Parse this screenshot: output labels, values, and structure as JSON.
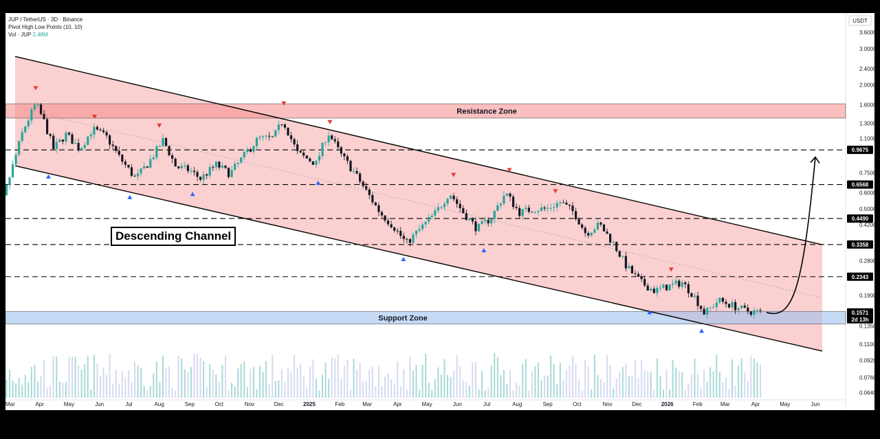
{
  "header": {
    "line1": "JUP / TetherUS · 3D · Binance",
    "line2": "Pivot High Low Points (10, 10)",
    "line3_label": "Vol · JUP",
    "line3_value": "2.48M"
  },
  "currency": "USDT",
  "annotation_title": "Descending Channel",
  "colors": {
    "up": "#26a69a",
    "down": "#131722",
    "channel_fill": "#f7b9b9",
    "resistance": "#f58a8a",
    "support": "#9fc2ee",
    "pivot_high": "#e53935",
    "pivot_low": "#2962ff"
  },
  "chart_data": {
    "type": "candlestick",
    "title": "",
    "scale": "log",
    "ylim": [
      0.0605,
      4.3
    ],
    "y_ticks": [
      "3.6000",
      "3.0000",
      "2.4000",
      "2.0000",
      "1.6000",
      "1.3000",
      "1.1000",
      "0.7500",
      "0.6000",
      "0.5000",
      "0.4200",
      "0.2800",
      "0.1900",
      "0.1350",
      "0.1100",
      "0.0920",
      "0.0760",
      "0.0640"
    ],
    "x_ticks": [
      "Mar",
      "Apr",
      "May",
      "Jun",
      "Jul",
      "Aug",
      "Sep",
      "Oct",
      "Nov",
      "Dec",
      "2025",
      "Feb",
      "Mar",
      "Apr",
      "May",
      "Jun",
      "Jul",
      "Aug",
      "Sep",
      "Oct",
      "Nov",
      "Dec",
      "2026",
      "Feb",
      "Mar",
      "Apr",
      "May",
      "Jun"
    ],
    "x_ticks_bold": [
      "2025",
      "2026"
    ],
    "price_levels": [
      0.9675,
      0.6568,
      0.449,
      0.3358,
      0.2343
    ],
    "price_labels": [
      "0.9675",
      "0.6568",
      "0.4490",
      "0.3358",
      "0.2343"
    ],
    "last_price": 0.1571,
    "last_price_label": "0.1571",
    "countdown": "2d 13h",
    "zones": [
      {
        "label": "Resistance Zone",
        "low": 1.38,
        "high": 1.62
      },
      {
        "label": "Support Zone",
        "low": 0.138,
        "high": 0.159
      }
    ],
    "channel": {
      "upper_start": {
        "date": "2024-03-07",
        "value": 2.75
      },
      "upper_end": {
        "date": "2026-06-08",
        "value": 0.335
      },
      "lower_start": {
        "date": "2024-03-07",
        "value": 0.81
      },
      "lower_end": {
        "date": "2026-06-08",
        "value": 0.102
      }
    },
    "projection_target": 0.95,
    "price_path": [
      [
        "2024-02-01",
        0.46
      ],
      [
        "2024-02-22",
        0.52
      ],
      [
        "2024-03-05",
        0.82
      ],
      [
        "2024-03-15",
        1.2
      ],
      [
        "2024-03-28",
        1.62
      ],
      [
        "2024-04-05",
        1.35
      ],
      [
        "2024-04-15",
        0.98
      ],
      [
        "2024-04-28",
        1.15
      ],
      [
        "2024-05-12",
        0.98
      ],
      [
        "2024-05-25",
        1.22
      ],
      [
        "2024-06-08",
        1.12
      ],
      [
        "2024-06-22",
        0.88
      ],
      [
        "2024-07-08",
        0.7
      ],
      [
        "2024-07-22",
        0.85
      ],
      [
        "2024-08-05",
        1.08
      ],
      [
        "2024-08-18",
        0.8
      ],
      [
        "2024-09-01",
        0.77
      ],
      [
        "2024-09-12",
        0.7
      ],
      [
        "2024-09-28",
        0.82
      ],
      [
        "2024-10-12",
        0.74
      ],
      [
        "2024-10-26",
        0.9
      ],
      [
        "2024-11-10",
        1.1
      ],
      [
        "2024-11-25",
        1.1
      ],
      [
        "2024-12-05",
        1.35
      ],
      [
        "2024-12-20",
        0.93
      ],
      [
        "2025-01-08",
        0.83
      ],
      [
        "2025-01-20",
        1.18
      ],
      [
        "2025-02-02",
        0.92
      ],
      [
        "2025-02-16",
        0.75
      ],
      [
        "2025-03-01",
        0.6
      ],
      [
        "2025-03-14",
        0.48
      ],
      [
        "2025-03-28",
        0.41
      ],
      [
        "2025-04-10",
        0.34
      ],
      [
        "2025-04-24",
        0.4
      ],
      [
        "2025-05-10",
        0.48
      ],
      [
        "2025-05-24",
        0.6
      ],
      [
        "2025-06-07",
        0.48
      ],
      [
        "2025-06-21",
        0.4
      ],
      [
        "2025-07-05",
        0.45
      ],
      [
        "2025-07-20",
        0.6
      ],
      [
        "2025-08-03",
        0.48
      ],
      [
        "2025-08-17",
        0.5
      ],
      [
        "2025-08-31",
        0.5
      ],
      [
        "2025-09-14",
        0.54
      ],
      [
        "2025-09-28",
        0.48
      ],
      [
        "2025-10-10",
        0.38
      ],
      [
        "2025-10-24",
        0.42
      ],
      [
        "2025-11-07",
        0.34
      ],
      [
        "2025-11-21",
        0.26
      ],
      [
        "2025-12-05",
        0.22
      ],
      [
        "2025-12-19",
        0.2
      ],
      [
        "2026-01-02",
        0.21
      ],
      [
        "2026-01-16",
        0.22
      ],
      [
        "2026-01-28",
        0.19
      ],
      [
        "2026-02-08",
        0.155
      ],
      [
        "2026-02-22",
        0.18
      ],
      [
        "2026-03-08",
        0.17
      ],
      [
        "2026-03-22",
        0.16
      ],
      [
        "2026-04-08",
        0.157
      ]
    ],
    "pivot_highs": [
      {
        "date": "2024-03-28",
        "value": 1.9
      },
      {
        "date": "2024-05-27",
        "value": 1.38
      },
      {
        "date": "2024-08-01",
        "value": 1.25
      },
      {
        "date": "2024-12-06",
        "value": 1.6
      },
      {
        "date": "2025-01-22",
        "value": 1.3
      },
      {
        "date": "2025-05-28",
        "value": 0.72
      },
      {
        "date": "2025-07-24",
        "value": 0.76
      },
      {
        "date": "2025-09-09",
        "value": 0.6
      },
      {
        "date": "2026-01-05",
        "value": 0.25
      }
    ],
    "pivot_lows": [
      {
        "date": "2024-04-10",
        "value": 0.73
      },
      {
        "date": "2024-07-02",
        "value": 0.58
      },
      {
        "date": "2024-09-04",
        "value": 0.6
      },
      {
        "date": "2025-01-10",
        "value": 0.68
      },
      {
        "date": "2025-04-07",
        "value": 0.29
      },
      {
        "date": "2025-06-28",
        "value": 0.32
      },
      {
        "date": "2025-12-14",
        "value": 0.16
      },
      {
        "date": "2026-02-05",
        "value": 0.13
      }
    ]
  }
}
